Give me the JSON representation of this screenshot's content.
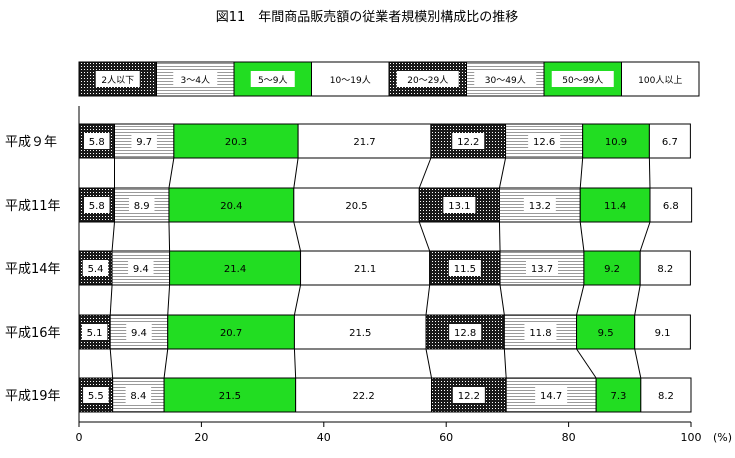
{
  "chart_data": {
    "type": "bar",
    "stacked": "100%",
    "orientation": "horizontal",
    "title": "図11　年間商品販売額の従業者規模別構成比の推移",
    "categories": [
      "平成９年",
      "平成11年",
      "平成14年",
      "平成16年",
      "平成19年"
    ],
    "series": [
      {
        "name": "2人以下",
        "values": [
          5.8,
          5.8,
          5.4,
          5.1,
          5.5
        ],
        "fill": "dots-dark"
      },
      {
        "name": "3～4人",
        "values": [
          9.7,
          8.9,
          9.4,
          9.4,
          8.4
        ],
        "fill": "hstripe-gray"
      },
      {
        "name": "5～9人",
        "values": [
          20.3,
          20.4,
          21.4,
          20.7,
          21.5
        ],
        "fill": "#22dd22"
      },
      {
        "name": "10～19人",
        "values": [
          21.7,
          20.5,
          21.1,
          21.5,
          22.2
        ],
        "fill": "#ffffff"
      },
      {
        "name": "20～29人",
        "values": [
          12.2,
          13.1,
          11.5,
          12.8,
          12.2
        ],
        "fill": "dots-dark"
      },
      {
        "name": "30～49人",
        "values": [
          12.6,
          13.2,
          13.7,
          11.8,
          14.7
        ],
        "fill": "hstripe-gray"
      },
      {
        "name": "50～99人",
        "values": [
          10.9,
          11.4,
          9.2,
          9.5,
          7.3
        ],
        "fill": "#22dd22"
      },
      {
        "name": "100人以上",
        "values": [
          6.7,
          6.8,
          8.2,
          9.1,
          8.2
        ],
        "fill": "#ffffff"
      }
    ],
    "xlim": [
      0,
      100
    ],
    "xticks": [
      0,
      20,
      40,
      60,
      80,
      100
    ],
    "xunit": "(%)",
    "legend_position": "top",
    "grid": false,
    "connector_lines": true
  }
}
